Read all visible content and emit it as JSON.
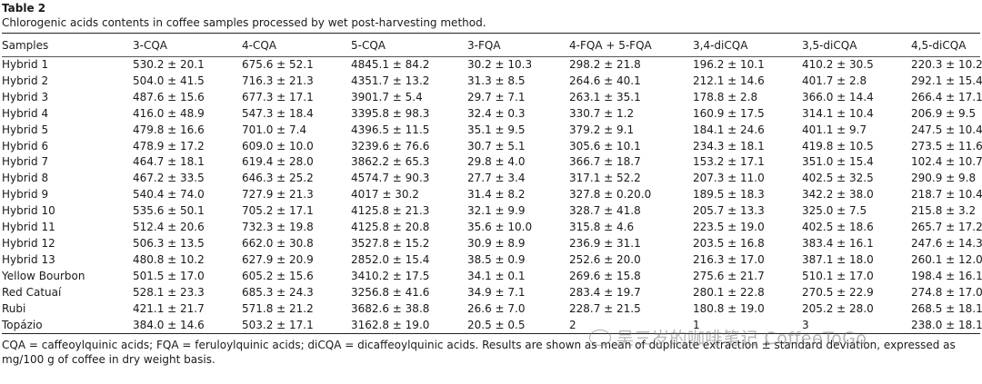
{
  "table": {
    "label": "Table 2",
    "caption": "Chlorogenic acids contents in coffee samples processed by wet post-harvesting method.",
    "columns": [
      "Samples",
      "3-CQA",
      "4-CQA",
      "5-CQA",
      "3-FQA",
      "4-FQA + 5-FQA",
      "3,4-diCQA",
      "3,5-diCQA",
      "4,5-diCQA"
    ],
    "rows": [
      [
        "Hybrid 1",
        "530.2 ± 20.1",
        "675.6 ± 52.1",
        "4845.1 ± 84.2",
        "30.2 ± 10.3",
        "298.2 ± 21.8",
        "196.2 ± 10.1",
        "410.2 ± 30.5",
        "220.3 ± 10.2"
      ],
      [
        "Hybrid 2",
        "504.0 ± 41.5",
        "716.3 ± 21.3",
        "4351.7 ± 13.2",
        "31.3 ± 8.5",
        "264.6 ± 40.1",
        "212.1 ± 14.6",
        "401.7 ± 2.8",
        "292.1 ± 15.4"
      ],
      [
        "Hybrid 3",
        "487.6 ± 15.6",
        "677.3 ± 17.1",
        "3901.7 ± 5.4",
        "29.7 ± 7.1",
        "263.1 ± 35.1",
        "178.8 ± 2.8",
        "366.0 ± 14.4",
        "266.4 ± 17.1"
      ],
      [
        "Hybrid 4",
        "416.0 ± 48.9",
        "547.3 ± 18.4",
        "3395.8 ± 98.3",
        "32.4 ± 0.3",
        "330.7 ± 1.2",
        "160.9 ± 17.5",
        "314.1 ± 10.4",
        "206.9 ± 9.5"
      ],
      [
        "Hybrid 5",
        "479.8 ± 16.6",
        "701.0 ± 7.4",
        "4396.5 ± 11.5",
        "35.1 ± 9.5",
        "379.2 ± 9.1",
        "184.1 ± 24.6",
        "401.1 ± 9.7",
        "247.5 ± 10.4"
      ],
      [
        "Hybrid 6",
        "478.9 ± 17.2",
        "609.0 ± 10.0",
        "3239.6 ± 76.6",
        "30.7 ± 5.1",
        "305.6 ± 10.1",
        "234.3 ± 18.1",
        "419.8 ± 10.5",
        "273.5 ± 11.6"
      ],
      [
        "Hybrid 7",
        "464.7 ± 18.1",
        "619.4 ± 28.0",
        "3862.2 ± 65.3",
        "29.8 ± 4.0",
        "366.7 ± 18.7",
        "153.2 ± 17.1",
        "351.0 ± 15.4",
        "102.4 ± 10.7"
      ],
      [
        "Hybrid 8",
        "467.2 ± 33.5",
        "646.3 ± 25.2",
        "4574.7 ± 90.3",
        "27.7 ± 3.4",
        "317.1 ± 52.2",
        "207.3 ± 11.0",
        "402.5 ± 32.5",
        "290.9 ± 9.8"
      ],
      [
        "Hybrid 9",
        "540.4 ± 74.0",
        "727.9 ± 21.3",
        "4017 ± 30.2",
        "31.4 ± 8.2",
        "327.8 ± 0.20.0",
        "189.5 ± 18.3",
        "342.2 ± 38.0",
        "218.7 ± 10.4"
      ],
      [
        "Hybrid 10",
        "535.6 ± 50.1",
        "705.2 ± 17.1",
        "4125.8 ± 21.3",
        "32.1 ± 9.9",
        "328.7 ± 41.8",
        "205.7 ± 13.3",
        "325.0 ± 7.5",
        "215.8 ± 3.2"
      ],
      [
        "Hybrid 11",
        "512.4 ± 20.6",
        "732.3 ± 19.8",
        "4125.8 ± 20.8",
        "35.6 ± 10.0",
        "315.8 ± 4.6",
        "223.5 ± 19.0",
        "402.5 ± 18.6",
        "265.7 ± 17.2"
      ],
      [
        "Hybrid 12",
        "506.3 ± 13.5",
        "662.0 ± 30.8",
        "3527.8 ± 15.2",
        "30.9 ± 8.9",
        "236.9 ± 31.1",
        "203.5 ± 16.8",
        "383.4 ± 16.1",
        "247.6 ± 14.3"
      ],
      [
        "Hybrid 13",
        "480.8 ± 10.2",
        "627.9 ± 20.9",
        "2852.0 ± 15.4",
        "38.5 ± 0.9",
        "252.6 ± 20.0",
        "216.3 ± 17.0",
        "387.1 ± 18.0",
        "260.1 ± 12.0"
      ],
      [
        "Yellow Bourbon",
        "501.5 ± 17.0",
        "605.2 ± 15.6",
        "3410.2 ± 17.5",
        "34.1 ± 0.1",
        "269.6 ± 15.8",
        "275.6 ± 21.7",
        "510.1 ± 17.0",
        "198.4 ± 16.1"
      ],
      [
        "Red Catuaí",
        "528.1 ± 23.3",
        "685.3 ± 24.3",
        "3256.8 ± 41.6",
        "34.9 ± 7.1",
        "283.4 ± 19.7",
        "280.1 ± 22.8",
        "270.5 ± 22.9",
        "274.8 ± 17.0"
      ],
      [
        "Rubi",
        "421.1 ± 21.7",
        "571.8 ± 21.2",
        "3682.6 ± 38.8",
        "26.6 ± 7.0",
        "228.7 ± 21.5",
        "180.8 ± 19.0",
        "205.2 ± 28.0",
        "268.5 ± 18.1"
      ],
      [
        "Topázio",
        "384.0 ± 14.6",
        "503.2 ± 17.1",
        "3162.8 ± 19.0",
        "20.5 ± 0.5",
        "2",
        "1",
        "3",
        "238.0 ± 18.1"
      ]
    ],
    "footnote": "CQA = caffeoylquinic acids; FQA = feruloylquinic acids; diCQA = dicaffeoylquinic acids. Results are shown as mean of duplicate extraction ± standard deviation, expressed as mg/100 g of coffee in dry weight basis."
  },
  "watermark": {
    "text": "吴三岁的咖啡笔记 CoffeeToGo",
    "icon": "wechat-icon"
  }
}
